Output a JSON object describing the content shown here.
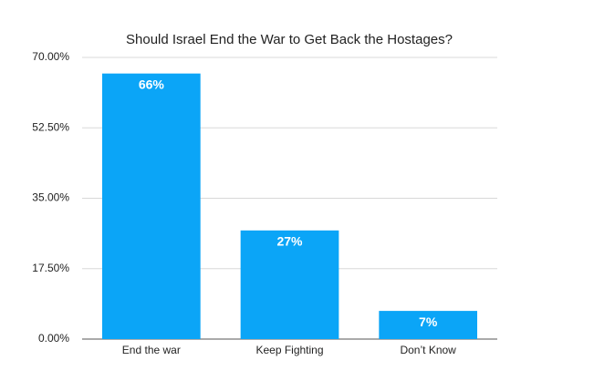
{
  "chart_data": {
    "type": "bar",
    "title": "Should Israel End the War to Get Back the Hostages?",
    "categories": [
      "End the war",
      "Keep Fighting",
      "Don’t Know"
    ],
    "values": [
      66,
      27,
      7
    ],
    "value_labels": [
      "66%",
      "27%",
      "7%"
    ],
    "color": "#0ba5f7",
    "ylim": [
      0,
      70
    ],
    "yticks": [
      {
        "value": 0,
        "label": "0.00%"
      },
      {
        "value": 17.5,
        "label": "17.50%"
      },
      {
        "value": 35,
        "label": "35.00%"
      },
      {
        "value": 52.5,
        "label": "52.50%"
      },
      {
        "value": 70,
        "label": "70.00%"
      }
    ],
    "grid": true
  }
}
